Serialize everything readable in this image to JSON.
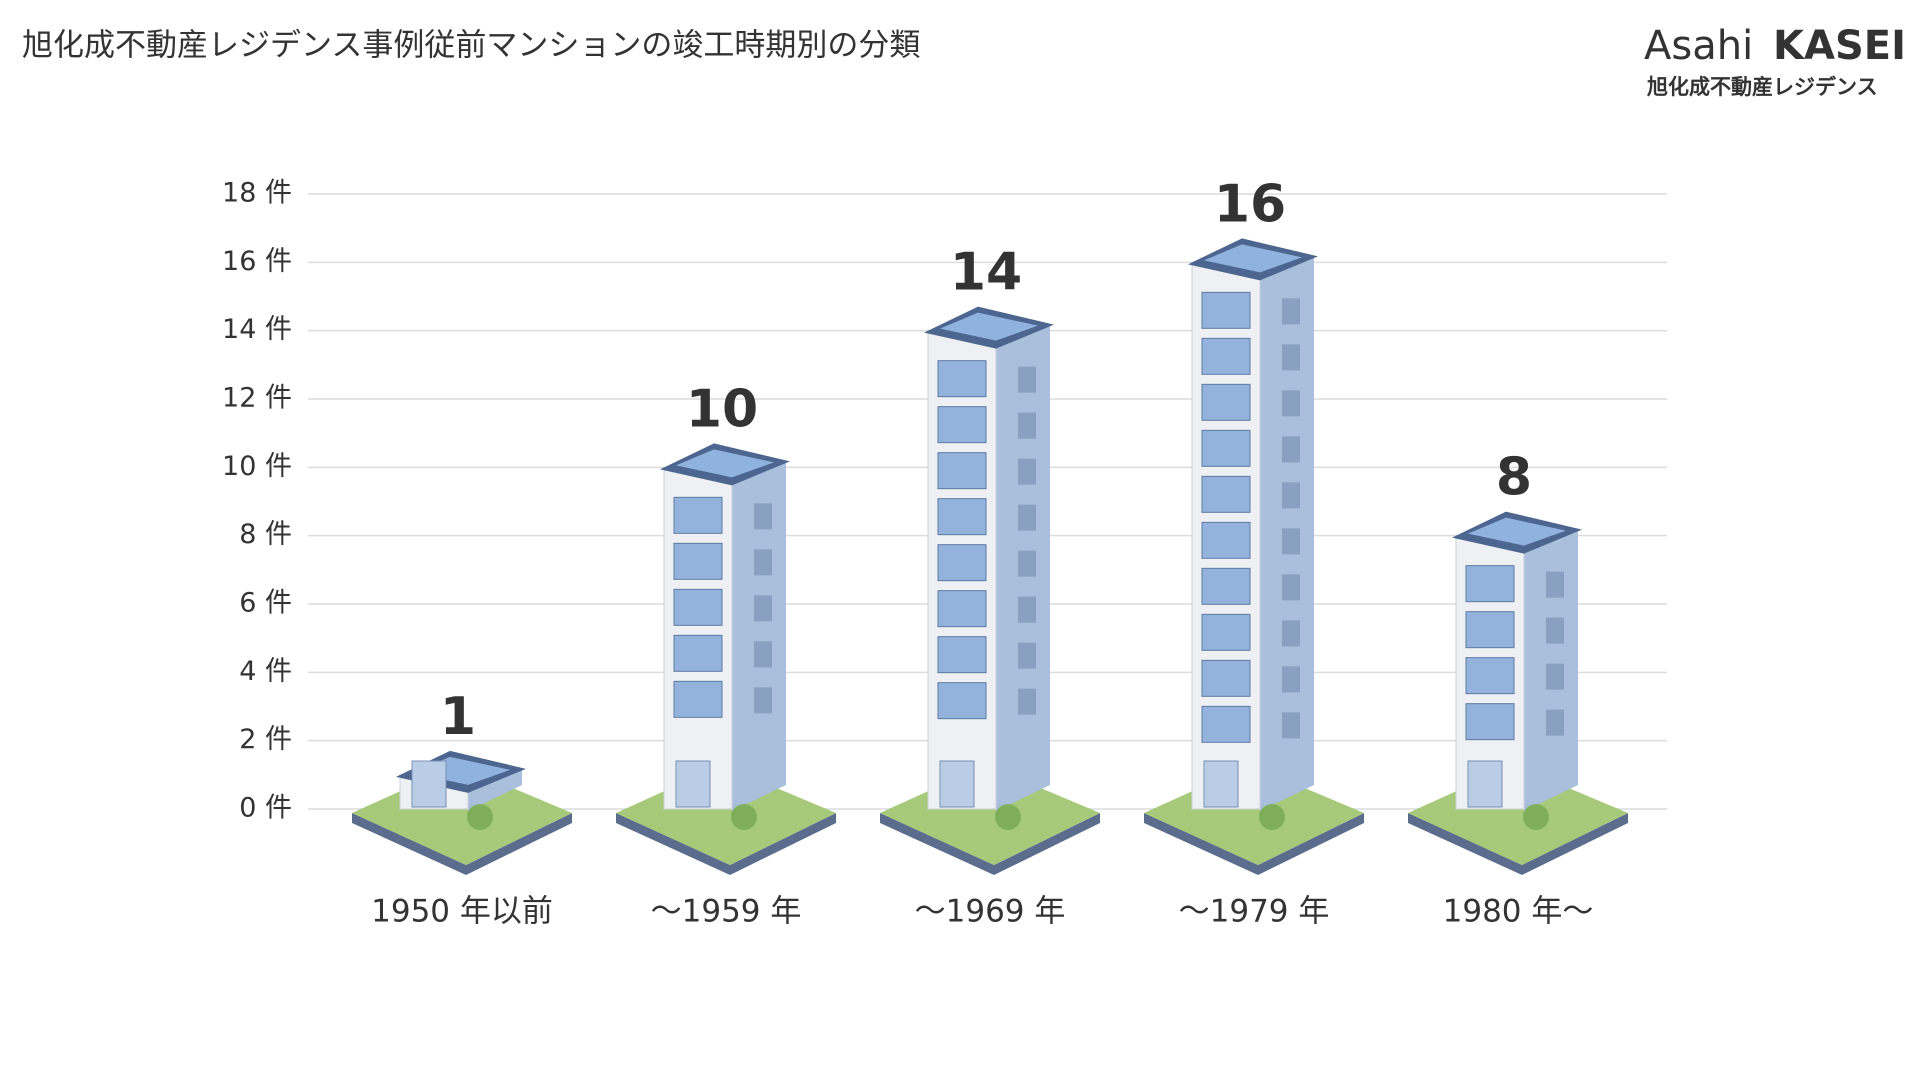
{
  "logo": {
    "brand_light": "Asahi",
    "brand_bold": "KASEI",
    "company": "旭化成不動産レジデンス"
  },
  "chart_data": {
    "type": "bar",
    "title": "旭化成不動産レジデンス事例従前マンションの竣工時期別の分類",
    "categories": [
      "1950 年以前",
      "～1959 年",
      "～1969 年",
      "～1979 年",
      "1980 年～"
    ],
    "values": [
      1,
      10,
      14,
      16,
      8
    ],
    "color": "#a9bfdb",
    "ylim": [
      0,
      18
    ],
    "yticks": [
      {
        "value": 0,
        "label": "0 件"
      },
      {
        "value": 2,
        "label": "2 件"
      },
      {
        "value": 4,
        "label": "4 件"
      },
      {
        "value": 6,
        "label": "6 件"
      },
      {
        "value": 8,
        "label": "8 件"
      },
      {
        "value": 10,
        "label": "10 件"
      },
      {
        "value": 12,
        "label": "12 件"
      },
      {
        "value": 14,
        "label": "14 件"
      },
      {
        "value": 16,
        "label": "16 件"
      },
      {
        "value": 18,
        "label": "18 件"
      }
    ],
    "grid": true
  }
}
